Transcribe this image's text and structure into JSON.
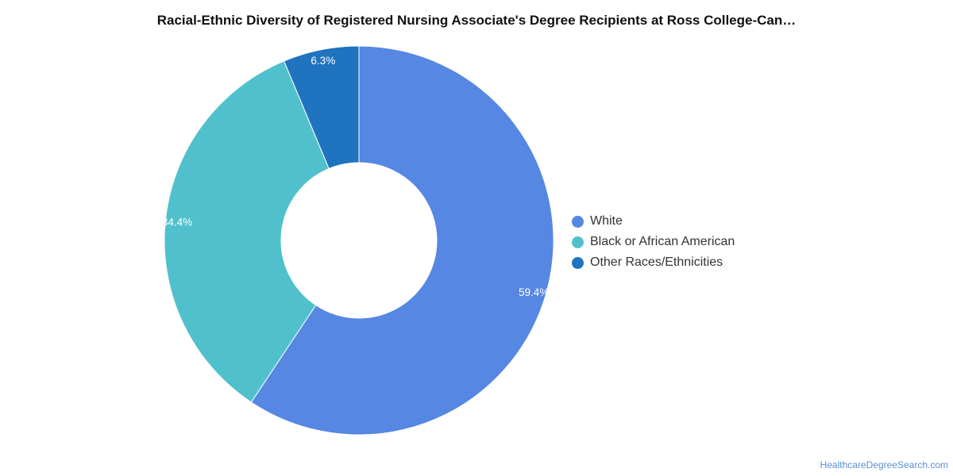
{
  "chart_data": {
    "type": "pie",
    "title": "Racial-Ethnic Diversity of Registered Nursing Associate's Degree Recipients at Ross College-Can…",
    "categories": [
      "White",
      "Black or African American",
      "Other Races/Ethnicities"
    ],
    "values": [
      59.4,
      34.4,
      6.3
    ],
    "labels": [
      "59.4%",
      "34.4%",
      "6.3%"
    ],
    "colors": [
      "#5587e3",
      "#50c1cc",
      "#1f73bf"
    ],
    "donut": true,
    "legend_position": "right"
  },
  "footer": {
    "source": "HealthcareDegreeSearch.com"
  }
}
